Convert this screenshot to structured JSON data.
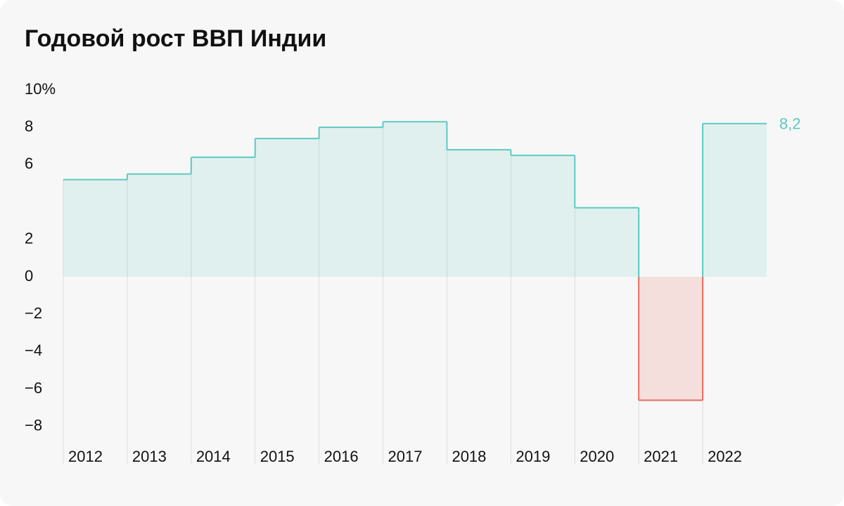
{
  "chart_data": {
    "type": "step-bar",
    "title": "Годовой рост ВВП Индии",
    "categories": [
      "2012",
      "2013",
      "2014",
      "2015",
      "2016",
      "2017",
      "2018",
      "2019",
      "2020",
      "2021",
      "2022"
    ],
    "values": [
      5.2,
      5.5,
      6.4,
      7.4,
      8.0,
      8.3,
      6.8,
      6.5,
      3.7,
      -6.6,
      8.2
    ],
    "value_labels": [
      null,
      null,
      null,
      null,
      null,
      null,
      null,
      null,
      null,
      null,
      "8,2"
    ],
    "color": "#5bcbbf",
    "negative_color": "#ea6b5c",
    "ylim": [
      -10,
      10.3
    ],
    "yticks": [
      {
        "value": 10,
        "label": "10%"
      },
      8,
      6,
      2,
      0,
      {
        "value": -2,
        "label": "−2"
      },
      {
        "value": -4,
        "label": "−4"
      },
      {
        "value": -6,
        "label": "−6"
      },
      {
        "value": -8,
        "label": "−8"
      }
    ]
  }
}
